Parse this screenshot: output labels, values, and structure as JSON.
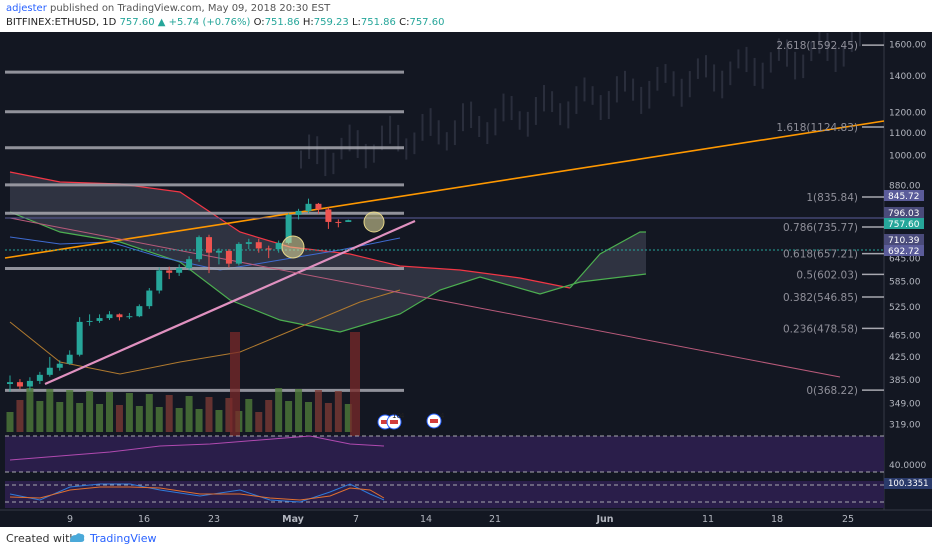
{
  "header": {
    "publisher": "adjester",
    "published_text": "published on TradingView.com, May 09, 2018 20:30 EST",
    "symbol_line": "BITFINEX:ETHUSD, 1D",
    "last": "757.60",
    "change": "+5.74 (+0.76%)",
    "open": "751.86",
    "high": "759.23",
    "low": "751.86",
    "close": "757.60",
    "o_label": "O:",
    "h_label": "H:",
    "l_label": "L:",
    "c_label": "C:"
  },
  "footer": {
    "created_with": "Created with",
    "brand": "TradingView"
  },
  "colors": {
    "background": "#131722",
    "up": "#26a69a",
    "down": "#ef5350",
    "trendline_orange": "#ff9800",
    "trendline_pink": "#e091c0",
    "fib_line": "#a8a8b0",
    "cloud_green": "#4caf50",
    "cloud_red": "#f23645",
    "rsi_pane": "#2a1e4a"
  },
  "chart_data": {
    "type": "candlestick",
    "title": "BITFINEX:ETHUSD, 1D",
    "x_ticks": [
      "9",
      "16",
      "23",
      "May",
      "7",
      "14",
      "21",
      "Jun",
      "11",
      "18",
      "25"
    ],
    "y_ticks": [
      1600,
      1400,
      1200,
      1100,
      1000,
      880,
      645,
      585,
      525,
      465,
      425,
      385,
      349,
      319
    ],
    "y_scale": "log",
    "ylim": [
      300,
      1750
    ],
    "price_labels": [
      {
        "value": "845.72",
        "color": "#5b5c9a"
      },
      {
        "value": "796.03",
        "color": "#4a4b7a"
      },
      {
        "value": "757.60",
        "color": "#26a69a"
      },
      {
        "value": "710.39",
        "color": "#4a4b7a"
      },
      {
        "value": "692.72",
        "color": "#5b5c9a"
      }
    ],
    "fib_levels": [
      {
        "label": "2.618(1592.45)",
        "value": 1592.45
      },
      {
        "label": "1.618(1124.83)",
        "value": 1124.83
      },
      {
        "label": "1(835.84)",
        "value": 835.84
      },
      {
        "label": "0.786(735.77)",
        "value": 735.77
      },
      {
        "label": "0.618(657.21)",
        "value": 657.21
      },
      {
        "label": "0.5(602.03)",
        "value": 602.03
      },
      {
        "label": "0.382(546.85)",
        "value": 546.85
      },
      {
        "label": "0.236(478.58)",
        "value": 478.58
      },
      {
        "label": "0(368.22)",
        "value": 368.22
      }
    ],
    "horizontal_levels": [
      1420,
      1200,
      1030,
      880,
      780,
      617,
      368
    ],
    "candles": [
      {
        "date": "Apr 5",
        "o": 378,
        "h": 392,
        "l": 366,
        "c": 381
      },
      {
        "date": "Apr 6",
        "o": 381,
        "h": 386,
        "l": 370,
        "c": 374
      },
      {
        "date": "Apr 7",
        "o": 374,
        "h": 389,
        "l": 368,
        "c": 383
      },
      {
        "date": "Apr 8",
        "o": 383,
        "h": 398,
        "l": 378,
        "c": 393
      },
      {
        "date": "Apr 9",
        "o": 393,
        "h": 424,
        "l": 390,
        "c": 405
      },
      {
        "date": "Apr 10",
        "o": 405,
        "h": 418,
        "l": 400,
        "c": 412
      },
      {
        "date": "Apr 11",
        "o": 412,
        "h": 436,
        "l": 410,
        "c": 428
      },
      {
        "date": "Apr 12",
        "o": 428,
        "h": 502,
        "l": 425,
        "c": 492
      },
      {
        "date": "Apr 13",
        "o": 492,
        "h": 508,
        "l": 484,
        "c": 494
      },
      {
        "date": "Apr 14",
        "o": 494,
        "h": 508,
        "l": 490,
        "c": 500
      },
      {
        "date": "Apr 15",
        "o": 500,
        "h": 515,
        "l": 496,
        "c": 508
      },
      {
        "date": "Apr 16",
        "o": 508,
        "h": 510,
        "l": 495,
        "c": 502
      },
      {
        "date": "Apr 17",
        "o": 502,
        "h": 511,
        "l": 498,
        "c": 504
      },
      {
        "date": "Apr 18",
        "o": 504,
        "h": 530,
        "l": 502,
        "c": 526
      },
      {
        "date": "Apr 19",
        "o": 526,
        "h": 568,
        "l": 520,
        "c": 562
      },
      {
        "date": "Apr 20",
        "o": 562,
        "h": 620,
        "l": 555,
        "c": 612
      },
      {
        "date": "Apr 21",
        "o": 612,
        "h": 622,
        "l": 590,
        "c": 606
      },
      {
        "date": "Apr 22",
        "o": 606,
        "h": 628,
        "l": 598,
        "c": 618
      },
      {
        "date": "Apr 23",
        "o": 618,
        "h": 650,
        "l": 612,
        "c": 642
      },
      {
        "date": "Apr 24",
        "o": 642,
        "h": 710,
        "l": 635,
        "c": 705
      },
      {
        "date": "Apr 25",
        "o": 705,
        "h": 712,
        "l": 605,
        "c": 660
      },
      {
        "date": "Apr 26",
        "o": 660,
        "h": 672,
        "l": 628,
        "c": 665
      },
      {
        "date": "Apr 27",
        "o": 665,
        "h": 670,
        "l": 620,
        "c": 630
      },
      {
        "date": "Apr 28",
        "o": 630,
        "h": 690,
        "l": 625,
        "c": 685
      },
      {
        "date": "Apr 29",
        "o": 685,
        "h": 700,
        "l": 670,
        "c": 690
      },
      {
        "date": "Apr 30",
        "o": 690,
        "h": 700,
        "l": 660,
        "c": 672
      },
      {
        "date": "May 1",
        "o": 672,
        "h": 680,
        "l": 645,
        "c": 670
      },
      {
        "date": "May 2",
        "o": 670,
        "h": 695,
        "l": 660,
        "c": 688
      },
      {
        "date": "May 3",
        "o": 688,
        "h": 780,
        "l": 684,
        "c": 775
      },
      {
        "date": "May 4",
        "o": 775,
        "h": 795,
        "l": 760,
        "c": 788
      },
      {
        "date": "May 5",
        "o": 788,
        "h": 830,
        "l": 780,
        "c": 812
      },
      {
        "date": "May 6",
        "o": 812,
        "h": 815,
        "l": 778,
        "c": 793
      },
      {
        "date": "May 7",
        "o": 793,
        "h": 800,
        "l": 730,
        "c": 752
      },
      {
        "date": "May 8",
        "o": 752,
        "h": 760,
        "l": 735,
        "c": 751
      },
      {
        "date": "May 9",
        "o": 751.86,
        "h": 759.23,
        "l": 751.86,
        "c": 757.6
      }
    ],
    "rsi": {
      "label": "40.0000"
    },
    "stoch": {
      "label": "100.3351"
    }
  }
}
